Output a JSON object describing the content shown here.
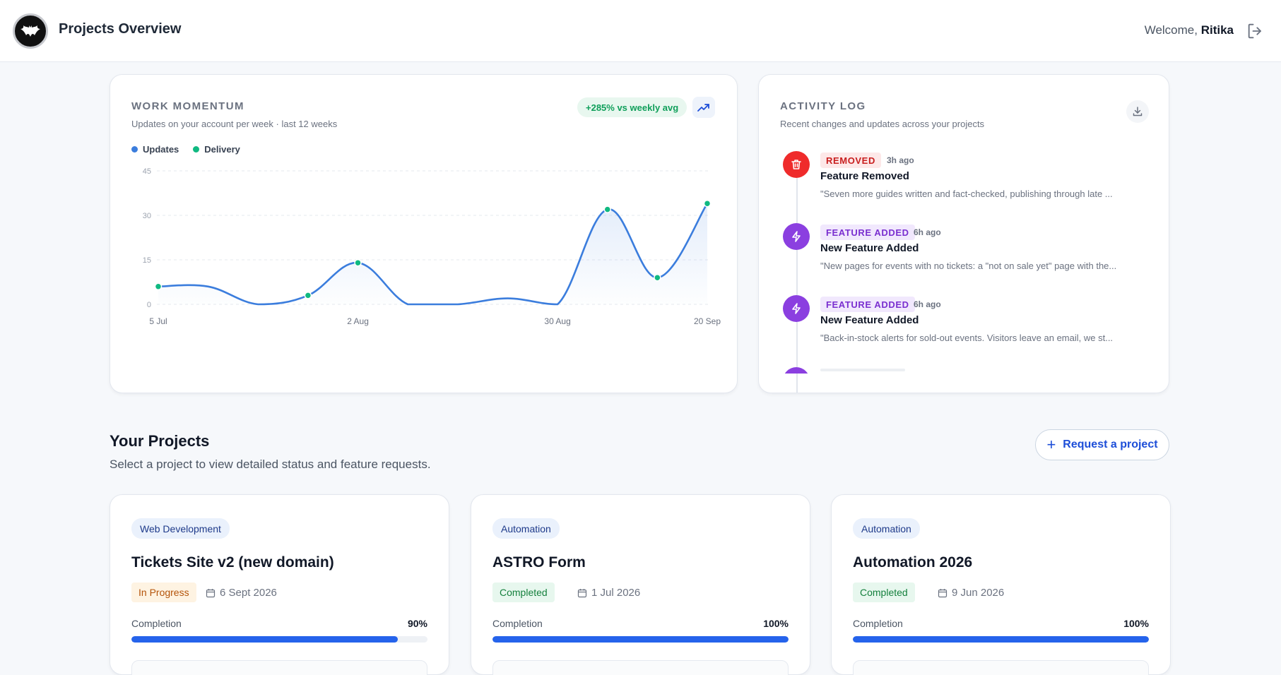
{
  "header": {
    "title": "Projects Overview",
    "welcome_prefix": "Welcome,",
    "user_name": "Ritika"
  },
  "momentum": {
    "label": "WORK MOMENTUM",
    "subtitle": "Updates on your account per week · last 12 weeks",
    "trend": "+285% vs weekly avg",
    "legend": [
      "Updates",
      "Delivery"
    ],
    "colors": {
      "updates": "#3b7ddd",
      "delivery": "#10b981"
    }
  },
  "chart_data": {
    "type": "line",
    "title": "",
    "xlabel": "",
    "ylabel": "",
    "ylim": [
      0,
      45
    ],
    "y_ticks": [
      "0",
      "15",
      "30",
      "45"
    ],
    "x_ticks": [
      "5 Jul",
      "2 Aug",
      "30 Aug",
      "20 Sep"
    ],
    "grid": true,
    "series": [
      {
        "name": "Updates",
        "x": [
          "5 Jul",
          "12 Jul",
          "19 Jul",
          "26 Jul",
          "2 Aug",
          "9 Aug",
          "16 Aug",
          "23 Aug",
          "30 Aug",
          "6 Sep",
          "13 Sep",
          "20 Sep"
        ],
        "values": [
          6,
          6,
          0,
          3,
          14,
          0,
          0,
          2,
          0,
          32,
          9,
          34
        ]
      },
      {
        "name": "Delivery",
        "x": [
          "5 Jul",
          "26 Jul",
          "2 Aug",
          "6 Sep",
          "13 Sep",
          "20 Sep"
        ],
        "values": [
          6,
          3,
          14,
          32,
          9,
          34
        ]
      }
    ]
  },
  "activity": {
    "label": "ACTIVITY LOG",
    "subtitle": "Recent changes and updates across your projects",
    "items": [
      {
        "badge": "REMOVED",
        "time": "3h ago",
        "title": "Feature Removed",
        "desc": "\"Seven more guides written and fact-checked, publishing through late ...",
        "kind": "removed"
      },
      {
        "badge": "FEATURE ADDED",
        "time": "6h ago",
        "title": "New Feature Added",
        "desc": "\"New pages for events with no tickets: a \"not on sale yet\" page with the...",
        "kind": "added"
      },
      {
        "badge": "FEATURE ADDED",
        "time": "6h ago",
        "title": "New Feature Added",
        "desc": "\"Back-in-stock alerts for sold-out events. Visitors leave an email, we st...",
        "kind": "added"
      }
    ]
  },
  "projects": {
    "title": "Your Projects",
    "subtitle": "Select a project to view detailed status and feature requests.",
    "request_label": "Request a project",
    "completion_label": "Completion",
    "items": [
      {
        "category": "Web Development",
        "name": "Tickets Site v2 (new domain)",
        "status": "In Progress",
        "date": "6 Sept 2026",
        "completion": 90,
        "completion_text": "90%"
      },
      {
        "category": "Automation",
        "name": "ASTRO Form",
        "status": "Completed",
        "date": "1 Jul 2026",
        "completion": 100,
        "completion_text": "100%"
      },
      {
        "category": "Automation",
        "name": "Automation 2026",
        "status": "Completed",
        "date": "9 Jun 2026",
        "completion": 100,
        "completion_text": "100%"
      }
    ]
  }
}
